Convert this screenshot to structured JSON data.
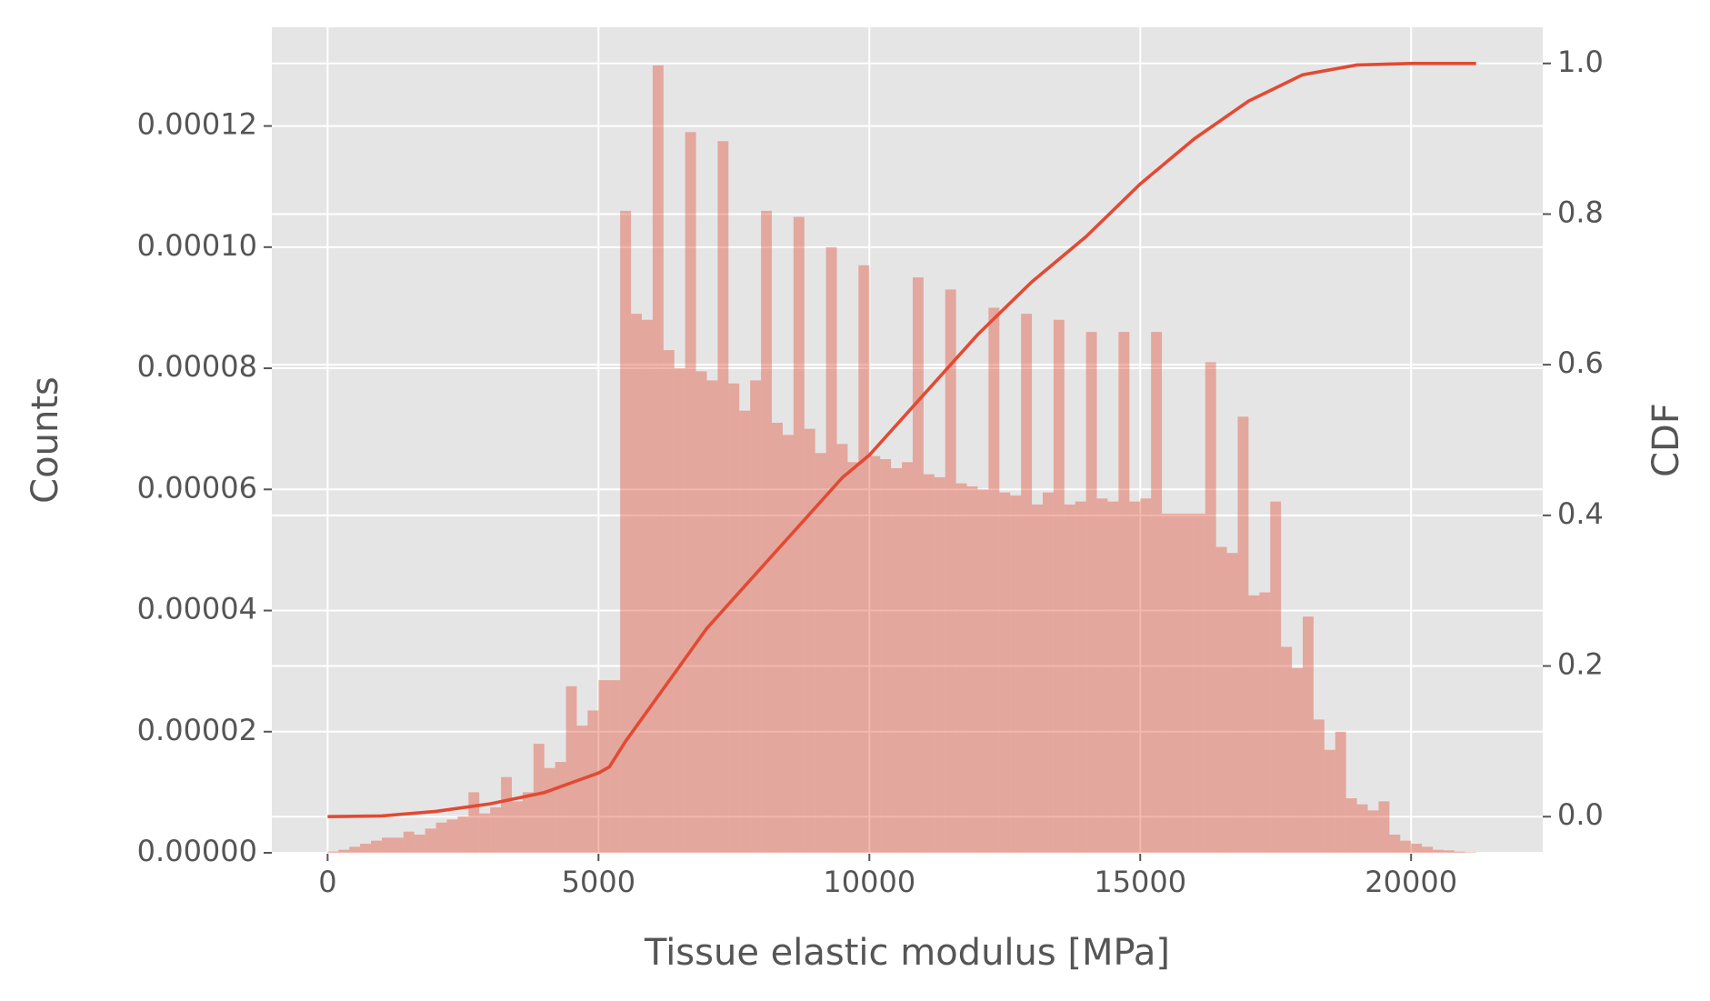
{
  "chart_data": {
    "type": "histogram",
    "xlabel": "Tissue elastic modulus [MPa]",
    "ylabel": "Counts",
    "y2label": "CDF",
    "color": "#e24a33",
    "alpha": 0.4,
    "background": "#e5e5e5",
    "grid": true,
    "bins": [
      0,
      200,
      400,
      600,
      800,
      1000,
      1200,
      1400,
      1600,
      1800,
      2000,
      2200,
      2400,
      2600,
      2800,
      3000,
      3200,
      3400,
      3600,
      3800,
      4000,
      4200,
      4400,
      4600,
      4800,
      5000,
      5200,
      5400,
      5600,
      5800,
      6000,
      6200,
      6400,
      6600,
      6800,
      7000,
      7200,
      7400,
      7600,
      7800,
      8000,
      8200,
      8400,
      8600,
      8800,
      9000,
      9200,
      9400,
      9600,
      9800,
      10000,
      10200,
      10400,
      10600,
      10800,
      11000,
      11200,
      11400,
      11600,
      11800,
      12000,
      12200,
      12400,
      12600,
      12800,
      13000,
      13200,
      13400,
      13600,
      13800,
      14000,
      14200,
      14400,
      14600,
      14800,
      15000,
      15200,
      15400,
      15600,
      15800,
      16000,
      16200,
      16400,
      16600,
      16800,
      17000,
      17200,
      17400,
      17600,
      17800,
      18000,
      18200,
      18400,
      18600,
      18800,
      19000,
      19200,
      19400,
      19600,
      19800,
      20000,
      20200,
      20400,
      20600,
      20800,
      21000,
      21200
    ],
    "values": [
      2e-07,
      5e-07,
      1e-06,
      1.5e-06,
      2e-06,
      2.5e-06,
      2.5e-06,
      3.5e-06,
      3e-06,
      4e-06,
      5e-06,
      5.5e-06,
      6e-06,
      1e-05,
      6.5e-06,
      7.5e-06,
      1.25e-05,
      8.5e-06,
      1e-05,
      1.8e-05,
      1.4e-05,
      1.5e-05,
      2.75e-05,
      2.1e-05,
      2.35e-05,
      2.85e-05,
      2.85e-05,
      0.000106,
      8.9e-05,
      8.8e-05,
      0.00013,
      8.3e-05,
      8e-05,
      0.000119,
      7.95e-05,
      7.8e-05,
      0.0001175,
      7.75e-05,
      7.3e-05,
      7.8e-05,
      0.000106,
      7.1e-05,
      6.9e-05,
      0.000105,
      7e-05,
      6.6e-05,
      0.0001,
      6.75e-05,
      6.45e-05,
      9.7e-05,
      6.55e-05,
      6.5e-05,
      6.35e-05,
      6.45e-05,
      9.5e-05,
      6.25e-05,
      6.2e-05,
      9.3e-05,
      6.1e-05,
      6.05e-05,
      6e-05,
      9e-05,
      5.95e-05,
      5.9e-05,
      8.9e-05,
      5.75e-05,
      5.95e-05,
      8.8e-05,
      5.75e-05,
      5.8e-05,
      8.6e-05,
      5.85e-05,
      5.8e-05,
      8.6e-05,
      5.8e-05,
      5.85e-05,
      8.6e-05,
      5.6e-05,
      5.6e-05,
      5.6e-05,
      5.6e-05,
      8.1e-05,
      5.05e-05,
      4.95e-05,
      7.2e-05,
      4.25e-05,
      4.3e-05,
      5.8e-05,
      3.4e-05,
      3.05e-05,
      3.9e-05,
      2.2e-05,
      1.7e-05,
      2e-05,
      9e-06,
      8e-06,
      7e-06,
      8.5e-06,
      3e-06,
      2e-06,
      1.5e-06,
      1e-06,
      5e-07,
      4e-07,
      2e-07,
      1e-07
    ],
    "xlim": [
      -1030,
      22430
    ],
    "xticks": [
      0,
      5000,
      10000,
      15000,
      20000
    ],
    "ylim": [
      0,
      0.0001363
    ],
    "yticks": [
      {
        "value": 0,
        "label": "0.00000"
      },
      {
        "value": 2e-05,
        "label": "0.00002"
      },
      {
        "value": 4e-05,
        "label": "0.00004"
      },
      {
        "value": 6e-05,
        "label": "0.00006"
      },
      {
        "value": 8e-05,
        "label": "0.00008"
      },
      {
        "value": 0.0001,
        "label": "0.00010"
      },
      {
        "value": 0.00012,
        "label": "0.00012"
      }
    ],
    "y2lim": [
      -0.048,
      1.048
    ],
    "y2ticks": [
      {
        "value": 0,
        "label": "0.0"
      },
      0.2,
      0.4,
      0.6,
      0.8,
      {
        "value": 1,
        "label": "1.0"
      }
    ],
    "overlay": {
      "type": "line",
      "axis": "y2",
      "color": "#e24a33",
      "x": [
        0,
        1000,
        2000,
        3000,
        4000,
        5000,
        5200,
        5500,
        6000,
        6500,
        7000,
        7500,
        8000,
        8500,
        9000,
        9500,
        10000,
        11000,
        12000,
        13000,
        14000,
        15000,
        16000,
        17000,
        18000,
        19000,
        20000,
        21200
      ],
      "values": [
        0,
        0.001,
        0.007,
        0.017,
        0.032,
        0.058,
        0.066,
        0.1,
        0.15,
        0.2,
        0.25,
        0.29,
        0.33,
        0.37,
        0.41,
        0.45,
        0.48,
        0.56,
        0.64,
        0.71,
        0.77,
        0.84,
        0.9,
        0.95,
        0.985,
        0.998,
        1,
        1
      ]
    }
  }
}
